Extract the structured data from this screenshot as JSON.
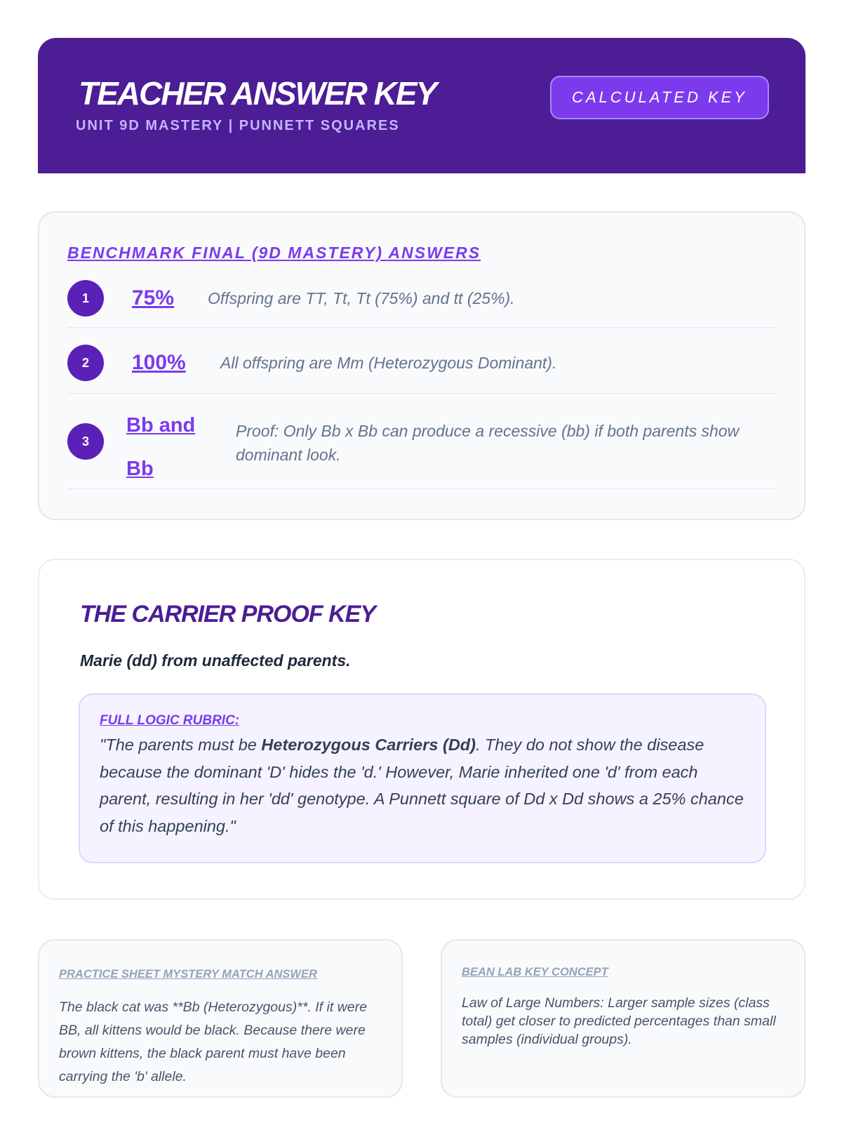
{
  "header": {
    "title": "TEACHER ANSWER KEY",
    "subtitle": "UNIT 9D MASTERY | PUNNETT SQUARES",
    "badge": "CALCULATED  KEY"
  },
  "benchmark": {
    "heading": "BENCHMARK FINAL (9D MASTERY) ANSWERS",
    "items": [
      {
        "number": "1",
        "answer": "75%",
        "explanation": "Offspring are TT, Tt, Tt (75%) and tt (25%)."
      },
      {
        "number": "2",
        "answer": "100%",
        "explanation": "All offspring are Mm (Heterozygous Dominant)."
      },
      {
        "number": "3",
        "answer": "Bb and Bb",
        "explanation": "Proof: Only Bb x Bb can produce a recessive (bb) if both parents show dominant look."
      }
    ]
  },
  "carrier": {
    "heading": "THE CARRIER PROOF KEY",
    "lead": "Marie (dd) from unaffected parents.",
    "rubric_label": "FULL LOGIC RUBRIC:",
    "rubric_pre": "\"The parents must be ",
    "rubric_bold": "Heterozygous Carriers (Dd)",
    "rubric_post": ". They do not show the disease because the dominant 'D' hides the 'd.' However, Marie inherited one 'd' from each parent, resulting in her 'dd' genotype. A Punnett square of Dd x Dd shows a 25% chance of this happening.\""
  },
  "practice": {
    "label": "PRACTICE SHEET MYSTERY MATCH ANSWER",
    "text": "The black cat was **Bb (Heterozygous)**. If it were BB, all kittens would be black. Because there were brown kittens, the black parent must have been carrying the 'b' allele."
  },
  "bean": {
    "label": "BEAN LAB KEY CONCEPT",
    "text": "Law of Large Numbers: Larger sample sizes (class total) get closer to predicted percentages than small samples (individual groups)."
  }
}
